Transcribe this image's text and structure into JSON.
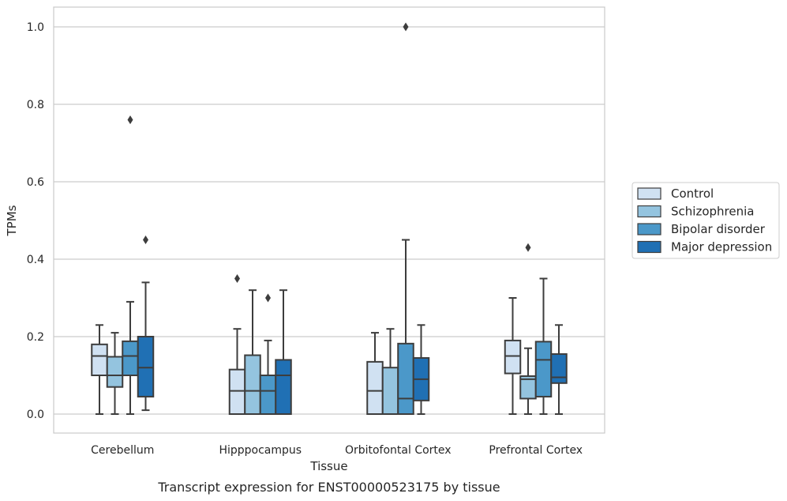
{
  "chart_data": {
    "type": "box",
    "title": "",
    "caption": "Transcript expression for ENST00000523175 by tissue",
    "xlabel": "Tissue",
    "ylabel": "TPMs",
    "ylim": [
      -0.05,
      1.05
    ],
    "yticks": [
      "0.0",
      "0.2",
      "0.4",
      "0.6",
      "0.8",
      "1.0"
    ],
    "grid": true,
    "legend_position": "right",
    "categories": [
      "Cerebellum",
      "Hipppocampus",
      "Orbitofontal Cortex",
      "Prefrontal Cortex"
    ],
    "series": [
      {
        "name": "Control",
        "color": "#d0e1f2",
        "boxes": [
          {
            "min": 0.0,
            "q1": 0.1,
            "median": 0.15,
            "q3": 0.18,
            "max": 0.23,
            "outliers": []
          },
          {
            "min": 0.0,
            "q1": 0.0,
            "median": 0.06,
            "q3": 0.115,
            "max": 0.22,
            "outliers": [
              0.35
            ]
          },
          {
            "min": 0.0,
            "q1": 0.0,
            "median": 0.06,
            "q3": 0.135,
            "max": 0.21,
            "outliers": []
          },
          {
            "min": 0.0,
            "q1": 0.105,
            "median": 0.15,
            "q3": 0.19,
            "max": 0.3,
            "outliers": []
          }
        ]
      },
      {
        "name": "Schizophrenia",
        "color": "#94c4df",
        "boxes": [
          {
            "min": 0.0,
            "q1": 0.07,
            "median": 0.1,
            "q3": 0.148,
            "max": 0.21,
            "outliers": []
          },
          {
            "min": 0.0,
            "q1": 0.0,
            "median": 0.06,
            "q3": 0.152,
            "max": 0.32,
            "outliers": []
          },
          {
            "min": 0.0,
            "q1": 0.0,
            "median": 0.0,
            "q3": 0.12,
            "max": 0.22,
            "outliers": []
          },
          {
            "min": 0.0,
            "q1": 0.04,
            "median": 0.09,
            "q3": 0.098,
            "max": 0.17,
            "outliers": [
              0.43
            ]
          }
        ]
      },
      {
        "name": "Bipolar disorder",
        "color": "#4b98c9",
        "boxes": [
          {
            "min": 0.0,
            "q1": 0.1,
            "median": 0.15,
            "q3": 0.188,
            "max": 0.29,
            "outliers": [
              0.76
            ]
          },
          {
            "min": 0.0,
            "q1": 0.0,
            "median": 0.06,
            "q3": 0.1,
            "max": 0.19,
            "outliers": [
              0.3
            ]
          },
          {
            "min": 0.0,
            "q1": 0.0,
            "median": 0.04,
            "q3": 0.182,
            "max": 0.45,
            "outliers": [
              1.0
            ]
          },
          {
            "min": 0.0,
            "q1": 0.045,
            "median": 0.14,
            "q3": 0.187,
            "max": 0.35,
            "outliers": []
          }
        ]
      },
      {
        "name": "Major depression",
        "color": "#2070b4",
        "boxes": [
          {
            "min": 0.01,
            "q1": 0.045,
            "median": 0.12,
            "q3": 0.2,
            "max": 0.34,
            "outliers": [
              0.45
            ]
          },
          {
            "min": 0.0,
            "q1": 0.0,
            "median": 0.1,
            "q3": 0.14,
            "max": 0.32,
            "outliers": []
          },
          {
            "min": 0.0,
            "q1": 0.035,
            "median": 0.09,
            "q3": 0.145,
            "max": 0.23,
            "outliers": []
          },
          {
            "min": 0.0,
            "q1": 0.08,
            "median": 0.095,
            "q3": 0.155,
            "max": 0.23,
            "outliers": []
          }
        ]
      }
    ]
  }
}
